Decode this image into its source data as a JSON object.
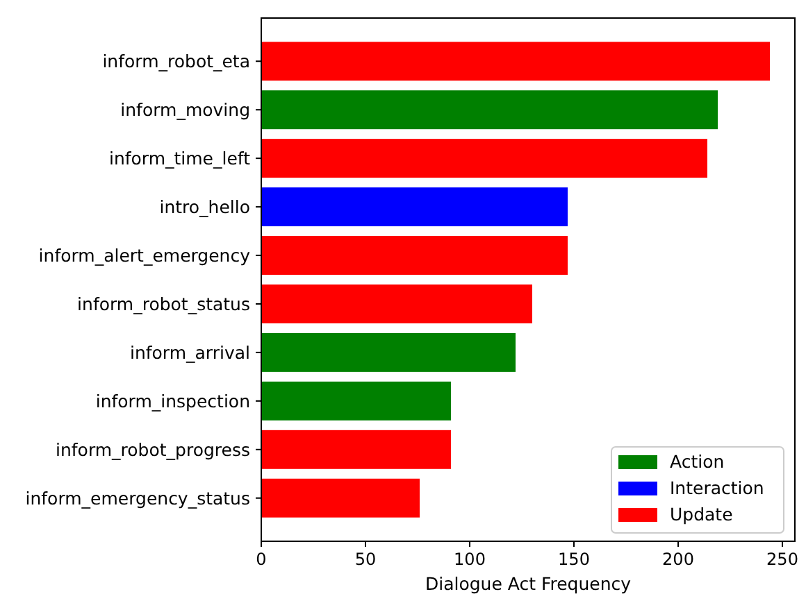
{
  "chart_data": {
    "type": "bar",
    "orientation": "horizontal",
    "xlabel": "Dialogue Act Frequency",
    "categories": [
      "inform_robot_eta",
      "inform_moving",
      "inform_time_left",
      "intro_hello",
      "inform_alert_emergency",
      "inform_robot_status",
      "inform_arrival",
      "inform_inspection",
      "inform_robot_progress",
      "inform_emergency_status"
    ],
    "series": [
      {
        "name": "Action",
        "color": "#008000",
        "values": [
          null,
          219,
          null,
          null,
          null,
          null,
          122,
          91,
          null,
          null
        ]
      },
      {
        "name": "Interaction",
        "color": "#0000ff",
        "values": [
          null,
          null,
          null,
          147,
          null,
          null,
          null,
          null,
          null,
          null
        ]
      },
      {
        "name": "Update",
        "color": "#ff0000",
        "values": [
          244,
          null,
          214,
          null,
          147,
          130,
          null,
          null,
          91,
          76
        ]
      }
    ],
    "xlim": [
      0,
      256
    ],
    "xticks": [
      0,
      50,
      100,
      150,
      200,
      250
    ],
    "legend": "bottom right",
    "grid": false
  }
}
